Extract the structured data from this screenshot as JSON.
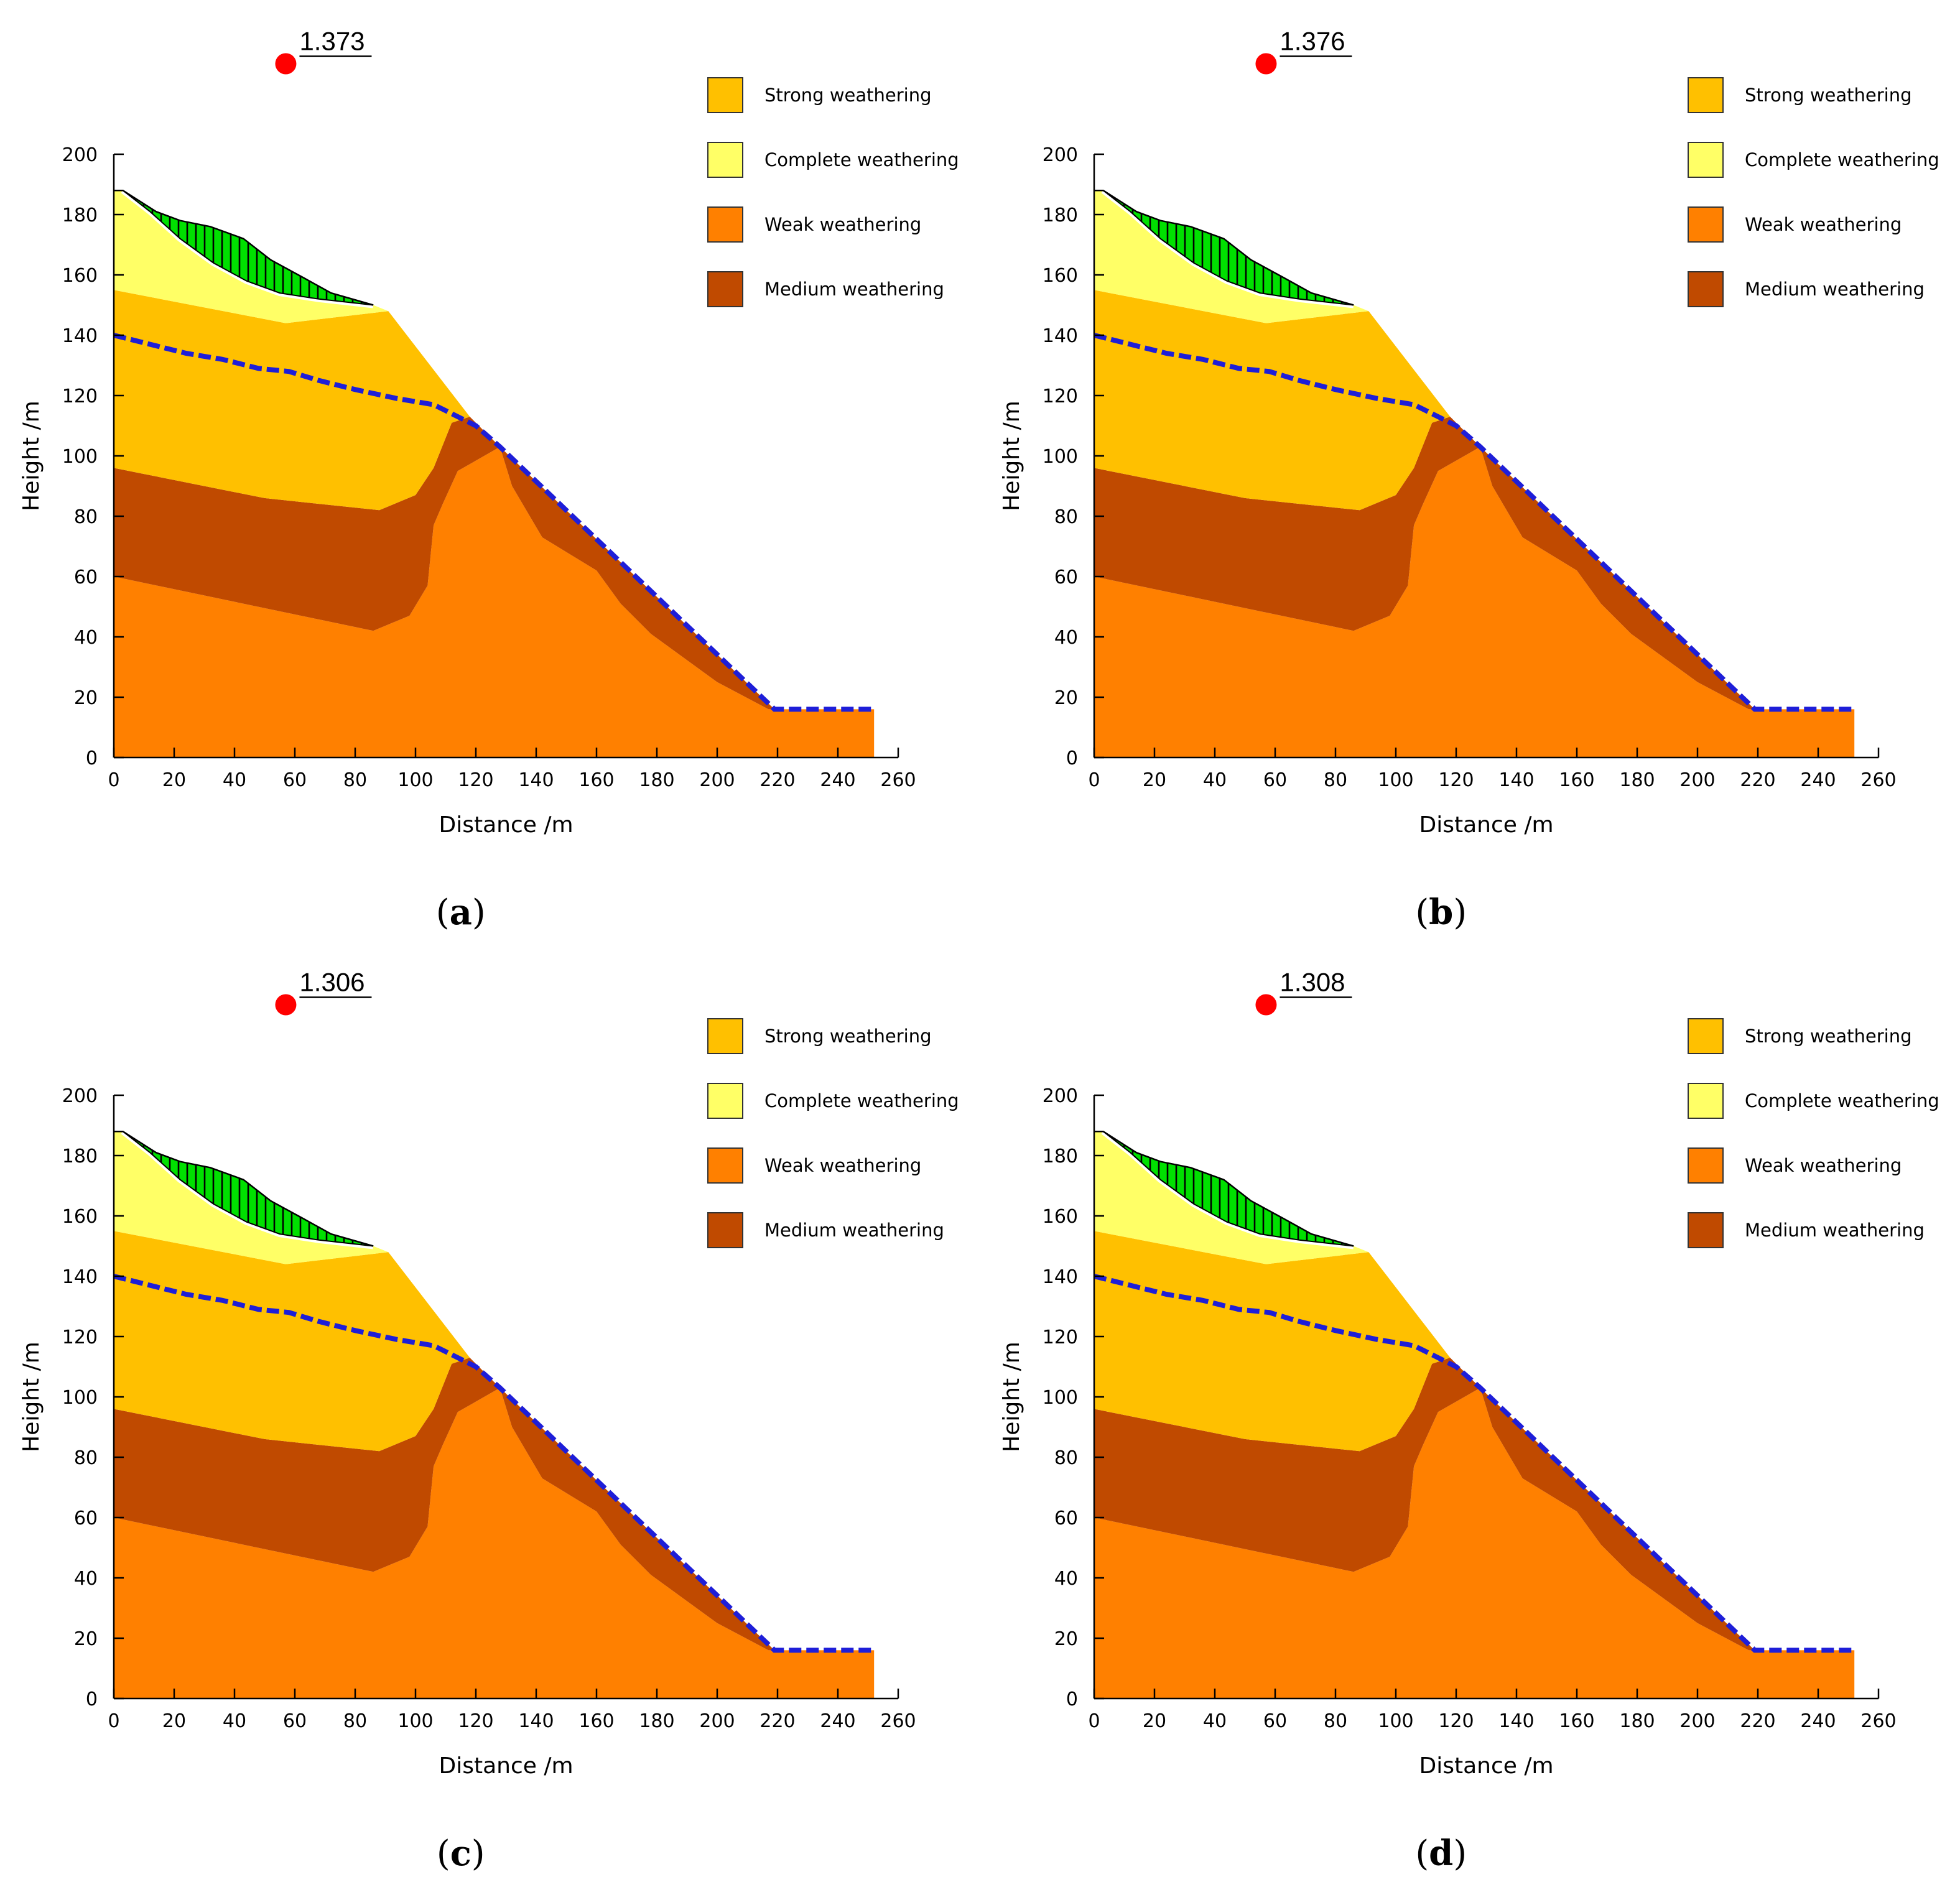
{
  "figure": {
    "panels": [
      {
        "id": "a",
        "caption_letter": "a",
        "factor_of_safety": "1.373"
      },
      {
        "id": "b",
        "caption_letter": "b",
        "factor_of_safety": "1.376"
      },
      {
        "id": "c",
        "caption_letter": "c",
        "factor_of_safety": "1.306"
      },
      {
        "id": "d",
        "caption_letter": "d",
        "factor_of_safety": "1.308"
      }
    ],
    "axes": {
      "xlabel": "Distance /m",
      "ylabel": "Height /m",
      "xlim": [
        0,
        260
      ],
      "ylim": [
        0,
        200
      ],
      "xticks": [
        "0",
        "20",
        "40",
        "60",
        "80",
        "100",
        "120",
        "140",
        "160",
        "180",
        "200",
        "220",
        "240",
        "260"
      ],
      "yticks": [
        "0",
        "20",
        "40",
        "60",
        "80",
        "100",
        "120",
        "140",
        "160",
        "180",
        "200"
      ]
    },
    "legend": [
      {
        "label": "Strong weathering",
        "color": "#FFC000"
      },
      {
        "label": "Complete weathering",
        "color": "#FFFF66"
      },
      {
        "label": "Weak weathering",
        "color": "#FF8000"
      },
      {
        "label": "Medium weathering",
        "color": "#C04A00"
      }
    ],
    "colors": {
      "sliding_mass": "#00E000",
      "water_table": "#1E1ED8",
      "slip_center": "#FF0000",
      "slip_surface": "#FFFFFF"
    },
    "layers": {
      "weak": [
        [
          0,
          0
        ],
        [
          0,
          60
        ],
        [
          86,
          42
        ],
        [
          98,
          47
        ],
        [
          104,
          57
        ],
        [
          106,
          77
        ],
        [
          109,
          84
        ],
        [
          114,
          95
        ],
        [
          128,
          103
        ],
        [
          132,
          90
        ],
        [
          142,
          73
        ],
        [
          160,
          62
        ],
        [
          168,
          51
        ],
        [
          178,
          41
        ],
        [
          200,
          25
        ],
        [
          217,
          16
        ],
        [
          252,
          16
        ],
        [
          252,
          0
        ]
      ],
      "medium": [
        [
          0,
          60
        ],
        [
          86,
          42
        ],
        [
          98,
          47
        ],
        [
          104,
          57
        ],
        [
          106,
          77
        ],
        [
          109,
          84
        ],
        [
          114,
          95
        ],
        [
          128,
          103
        ],
        [
          132,
          90
        ],
        [
          142,
          73
        ],
        [
          160,
          62
        ],
        [
          168,
          51
        ],
        [
          178,
          41
        ],
        [
          200,
          25
        ],
        [
          217,
          16
        ],
        [
          219,
          16
        ],
        [
          128,
          103
        ],
        [
          118,
          113
        ],
        [
          112,
          111
        ],
        [
          106,
          96
        ],
        [
          100,
          87
        ],
        [
          88,
          82
        ],
        [
          50,
          86
        ],
        [
          0,
          96
        ]
      ],
      "strong": [
        [
          0,
          96
        ],
        [
          50,
          86
        ],
        [
          88,
          82
        ],
        [
          100,
          87
        ],
        [
          106,
          96
        ],
        [
          112,
          111
        ],
        [
          118,
          113
        ],
        [
          91,
          148
        ],
        [
          57,
          144
        ],
        [
          0,
          155
        ]
      ],
      "complete": [
        [
          0,
          155
        ],
        [
          57,
          144
        ],
        [
          91,
          148
        ],
        [
          86,
          150
        ],
        [
          61,
          154
        ],
        [
          48,
          159
        ],
        [
          36,
          166
        ],
        [
          22,
          175
        ],
        [
          4,
          188
        ],
        [
          0,
          188
        ]
      ],
      "sliding_mass": [
        [
          3,
          188
        ],
        [
          14,
          181
        ],
        [
          22,
          178
        ],
        [
          32,
          176
        ],
        [
          43,
          172
        ],
        [
          52,
          165
        ],
        [
          63,
          159
        ],
        [
          72,
          154
        ],
        [
          86,
          150
        ],
        [
          68,
          152
        ],
        [
          55,
          154
        ],
        [
          44,
          158
        ],
        [
          33,
          164
        ],
        [
          22,
          172
        ],
        [
          12,
          181
        ]
      ],
      "surface": [
        [
          0,
          188
        ],
        [
          3,
          188
        ],
        [
          14,
          181
        ],
        [
          22,
          178
        ],
        [
          32,
          176
        ],
        [
          43,
          172
        ],
        [
          52,
          165
        ],
        [
          63,
          159
        ],
        [
          72,
          154
        ],
        [
          86,
          150
        ],
        [
          91,
          148
        ],
        [
          118,
          113
        ],
        [
          128,
          103
        ],
        [
          217,
          16
        ],
        [
          252,
          16
        ]
      ],
      "water_table": [
        [
          0,
          140
        ],
        [
          12,
          137
        ],
        [
          24,
          134
        ],
        [
          36,
          132
        ],
        [
          48,
          129
        ],
        [
          58,
          128
        ],
        [
          68,
          125
        ],
        [
          80,
          122
        ],
        [
          94,
          119
        ],
        [
          106,
          117
        ],
        [
          112,
          114
        ],
        [
          120,
          110
        ],
        [
          128,
          103
        ],
        [
          219,
          16
        ],
        [
          252,
          16
        ]
      ],
      "slip_center": [
        57,
        230
      ]
    }
  }
}
